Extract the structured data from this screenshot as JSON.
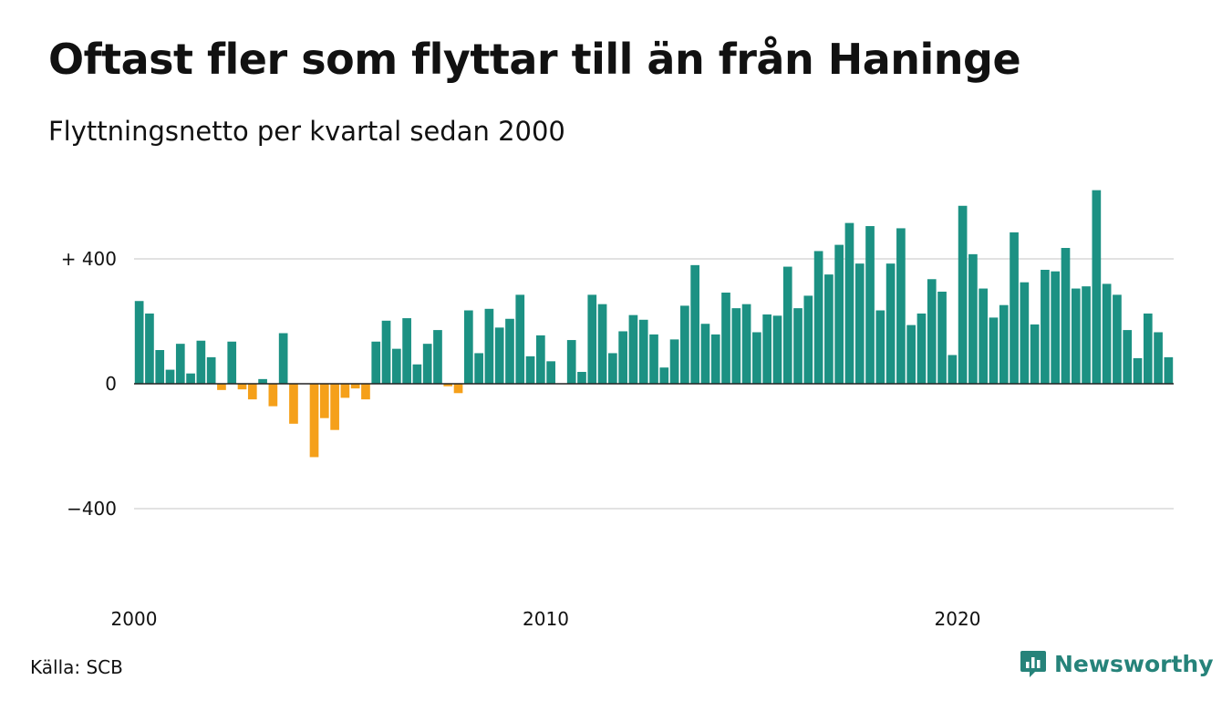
{
  "title": "Oftast fler som flyttar till än från Haninge",
  "subtitle": "Flyttningsnetto per kvartal sedan 2000",
  "source": "Källa: SCB",
  "brand": {
    "name": "Newsworthy",
    "icon": "newsworthy-logo-icon",
    "color": "#26837a"
  },
  "colors": {
    "positive": "#1c9183",
    "negative": "#f5a01a",
    "grid": "#e2e2e2",
    "axis": "#222222"
  },
  "chart_data": {
    "type": "bar",
    "ylim": [
      -660,
      630
    ],
    "grid": true,
    "y_ticks": [
      {
        "value": 400,
        "label": "+ 400"
      },
      {
        "value": 0,
        "label": "0"
      },
      {
        "value": -400,
        "label": "−400"
      }
    ],
    "x_ticks": [
      {
        "index": 0,
        "label": "2000"
      },
      {
        "index": 40,
        "label": "2010"
      },
      {
        "index": 80,
        "label": "2020"
      }
    ],
    "categories": [
      "2000 Q1",
      "2000 Q2",
      "2000 Q3",
      "2000 Q4",
      "2001 Q1",
      "2001 Q2",
      "2001 Q3",
      "2001 Q4",
      "2002 Q1",
      "2002 Q2",
      "2002 Q3",
      "2002 Q4",
      "2003 Q1",
      "2003 Q2",
      "2003 Q3",
      "2003 Q4",
      "2004 Q1",
      "2004 Q2",
      "2004 Q3",
      "2004 Q4",
      "2005 Q1",
      "2005 Q2",
      "2005 Q3",
      "2005 Q4",
      "2006 Q1",
      "2006 Q2",
      "2006 Q3",
      "2006 Q4",
      "2007 Q1",
      "2007 Q2",
      "2007 Q3",
      "2007 Q4",
      "2008 Q1",
      "2008 Q2",
      "2008 Q3",
      "2008 Q4",
      "2009 Q1",
      "2009 Q2",
      "2009 Q3",
      "2009 Q4",
      "2010 Q1",
      "2010 Q2",
      "2010 Q3",
      "2010 Q4",
      "2011 Q1",
      "2011 Q2",
      "2011 Q3",
      "2011 Q4",
      "2012 Q1",
      "2012 Q2",
      "2012 Q3",
      "2012 Q4",
      "2013 Q1",
      "2013 Q2",
      "2013 Q3",
      "2013 Q4",
      "2014 Q1",
      "2014 Q2",
      "2014 Q3",
      "2014 Q4",
      "2015 Q1",
      "2015 Q2",
      "2015 Q3",
      "2015 Q4",
      "2016 Q1",
      "2016 Q2",
      "2016 Q3",
      "2016 Q4",
      "2017 Q1",
      "2017 Q2",
      "2017 Q3",
      "2017 Q4",
      "2018 Q1",
      "2018 Q2",
      "2018 Q3",
      "2018 Q4",
      "2019 Q1",
      "2019 Q2",
      "2019 Q3",
      "2019 Q4",
      "2020 Q1",
      "2020 Q2",
      "2020 Q3",
      "2020 Q4",
      "2021 Q1",
      "2021 Q2",
      "2021 Q3",
      "2021 Q4",
      "2022 Q1",
      "2022 Q2",
      "2022 Q3",
      "2022 Q4",
      "2023 Q1",
      "2023 Q2",
      "2023 Q3",
      "2023 Q4",
      "2024 Q1",
      "2024 Q2",
      "2024 Q3",
      "2024 Q4",
      "2025 Q1"
    ],
    "values": [
      265,
      225,
      108,
      45,
      128,
      33,
      138,
      85,
      -20,
      135,
      -18,
      -50,
      15,
      -72,
      162,
      -128,
      0,
      -235,
      -110,
      -148,
      -45,
      -15,
      -50,
      135,
      202,
      112,
      210,
      62,
      128,
      172,
      -8,
      -30,
      235,
      98,
      240,
      180,
      208,
      285,
      88,
      155,
      72,
      0,
      140,
      38,
      285,
      255,
      98,
      168,
      220,
      205,
      158,
      52,
      142,
      250,
      380,
      192,
      158,
      292,
      242,
      255,
      165,
      222,
      218,
      375,
      242,
      282,
      425,
      350,
      445,
      515,
      385,
      505,
      235,
      385,
      498,
      188,
      225,
      335,
      295,
      92,
      570,
      415,
      305,
      212,
      252,
      485,
      325,
      190,
      365,
      360,
      435,
      305,
      312,
      620,
      320,
      285,
      172,
      82,
      225,
      165,
      85
    ]
  }
}
